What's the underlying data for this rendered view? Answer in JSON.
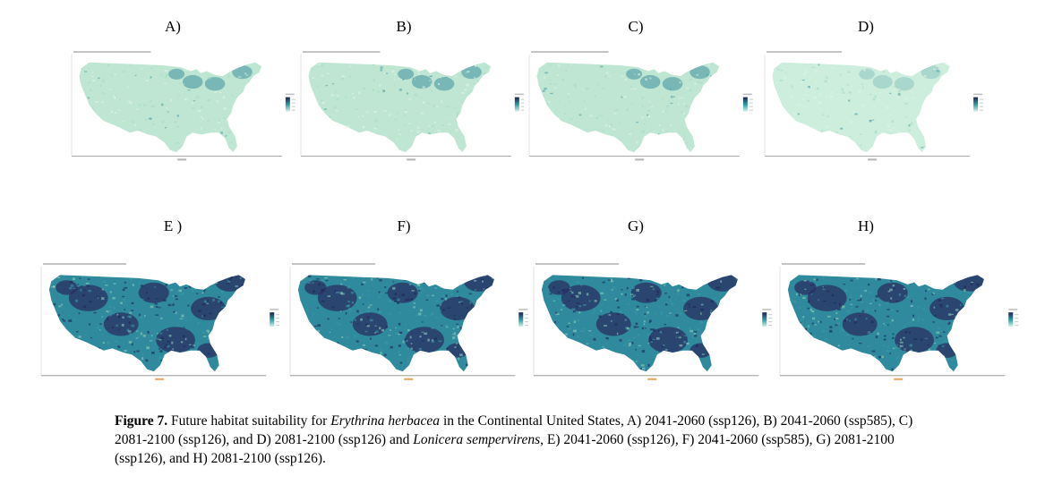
{
  "figure": {
    "panels": [
      {
        "id": "A",
        "label": "A)",
        "style": "light"
      },
      {
        "id": "B",
        "label": "B)",
        "style": "light"
      },
      {
        "id": "C",
        "label": "C)",
        "style": "light"
      },
      {
        "id": "D",
        "label": "D)",
        "style": "lighter"
      },
      {
        "id": "E",
        "label": "E )",
        "style": "dark"
      },
      {
        "id": "F",
        "label": "F)",
        "style": "dark"
      },
      {
        "id": "G",
        "label": "G)",
        "style": "dark"
      },
      {
        "id": "H",
        "label": "H)",
        "style": "dark"
      }
    ],
    "colors": {
      "light_fill": "#bfe6d2",
      "light_dark_patch": "#3f8fa0",
      "lighter_fill": "#cdeedd",
      "dark_fill": "#2e8a9c",
      "dark_patch": "#2b2d63",
      "legend_high": "#1f1f4e",
      "legend_low": "#d9f2e4"
    }
  },
  "caption": {
    "figure_label": "Figure 7.",
    "text_1": " Future habitat suitability for ",
    "species_1": "Erythrina herbacea",
    "text_2": " in the Continental United States, A) 2041-2060 (ssp126), B) 2041-2060 (ssp585), C) 2081-2100 (ssp126), and D) 2081-2100 (ssp126) and ",
    "species_2": "Lonicera sempervirens",
    "text_3": ", E) 2041-2060 (ssp126), F) 2041-2060 (ssp585), G) 2081-2100 (ssp126), and H) 2081-2100 (ssp126)."
  }
}
